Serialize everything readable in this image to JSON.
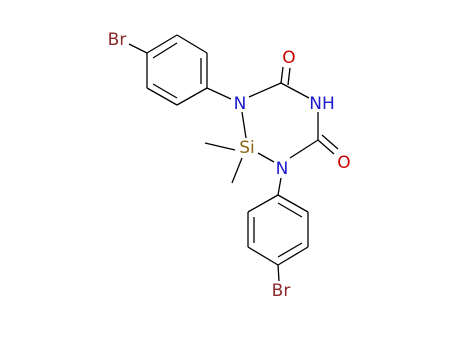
{
  "atoms": [
    "Br",
    "N",
    "O",
    "NH",
    "Si",
    "N",
    "O",
    "Br"
  ]
}
